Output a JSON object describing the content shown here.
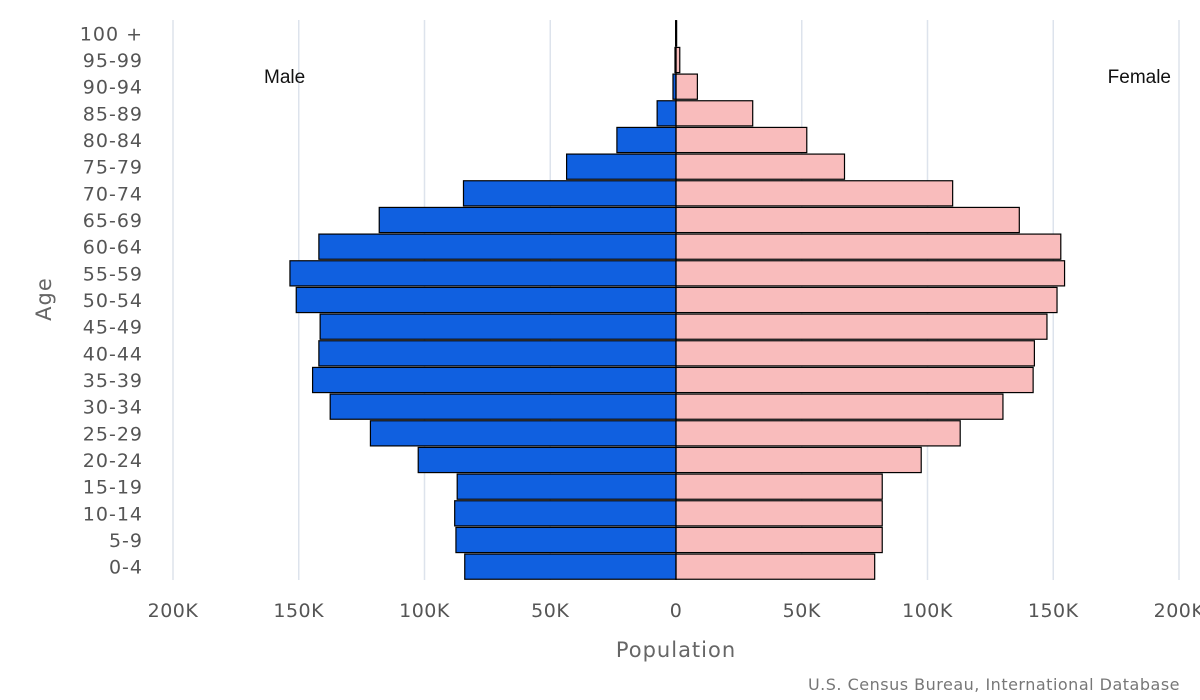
{
  "chart_data": {
    "type": "bar",
    "subtype": "population-pyramid",
    "categories": [
      "100 +",
      "95-99",
      "90-94",
      "85-89",
      "80-84",
      "75-79",
      "70-74",
      "65-69",
      "60-64",
      "55-59",
      "50-54",
      "45-49",
      "40-44",
      "35-39",
      "30-34",
      "25-29",
      "20-24",
      "15-19",
      "10-14",
      "5-9",
      "0-4"
    ],
    "series": [
      {
        "name": "Male",
        "color": "#1060e0",
        "values": [
          150,
          400,
          1200,
          7500,
          23500,
          43500,
          84500,
          118000,
          142000,
          153500,
          151000,
          141500,
          142000,
          144500,
          137500,
          121500,
          102500,
          87000,
          88000,
          87500,
          84000
        ]
      },
      {
        "name": "Female",
        "color": "#f9bcbc",
        "values": [
          250,
          1500,
          8500,
          30500,
          52000,
          67000,
          110000,
          136500,
          153000,
          154500,
          151500,
          147500,
          142500,
          142000,
          130000,
          113000,
          97500,
          82000,
          82000,
          82000,
          79000
        ]
      }
    ],
    "x_ticks": [
      -200000,
      -150000,
      -100000,
      -50000,
      0,
      50000,
      100000,
      150000,
      200000
    ],
    "x_tick_labels": [
      "200K",
      "150K",
      "100K",
      "50K",
      "0",
      "50K",
      "100K",
      "150K",
      "200K"
    ],
    "xlim": [
      -200000,
      200000
    ],
    "xlabel": "Population",
    "ylabel": "Age",
    "labels": {
      "male": "Male",
      "female": "Female"
    },
    "grid": true
  },
  "source": "U.S. Census Bureau, International Database"
}
